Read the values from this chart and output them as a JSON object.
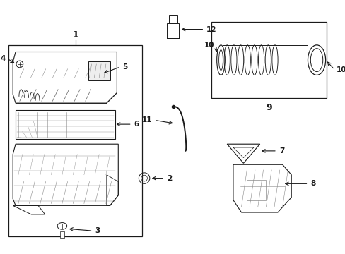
{
  "bg_color": "#ffffff",
  "line_color": "#1a1a1a",
  "gray": "#888888",
  "darkgray": "#555555"
}
